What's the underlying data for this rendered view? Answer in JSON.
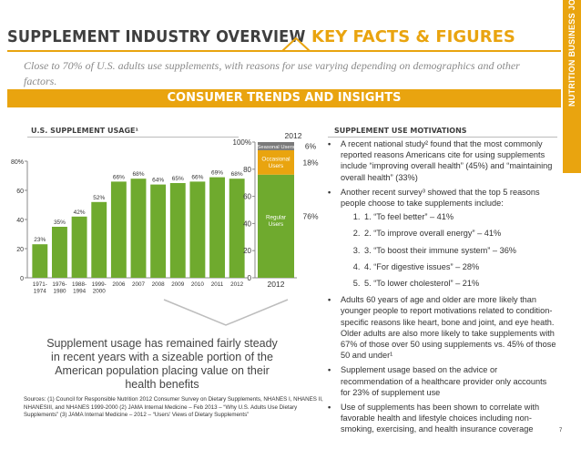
{
  "header": {
    "title": "SUPPLEMENT INDUSTRY OVERVIEW",
    "subtitle": "KEY FACTS & FIGURES"
  },
  "side_label": "NUTRITION BUSINESS JOURNAL",
  "intro": "Close to 70% of U.S. adults use supplements, with reasons for use varying depending on demographics and other factors.",
  "banner": "CONSUMER TRENDS AND INSIGHTS",
  "usage_section": {
    "title": "U.S. SUPPLEMENT USAGE¹"
  },
  "motivations_section": {
    "title": "SUPPLEMENT USE MOTIVATIONS"
  },
  "motivations": {
    "b1": "A recent national study² found that the most commonly reported reasons Americans cite for using supplements include “improving overall health” (45%) and “maintaining overall health” (33%)",
    "b2": "Another recent survey³ showed that the top 5 reasons people choose to take supplements include:",
    "top5": [
      "1.  “To feel better” – 41%",
      "2.  “To improve overall energy” – 41%",
      "3.  “To boost their immune system” – 36%",
      "4.  “For digestive issues” – 28%",
      "5.  “To lower cholesterol” – 21%"
    ],
    "b3": "Adults 60 years of age and older are more likely than younger people to report motivations related to condition-specific reasons like heart, bone and joint, and eye heath. Older adults are also more likely to take supplements with 67% of those over 50 using supplements vs. 45% of those 50 and under¹",
    "b4": "Supplement usage based on the advice or recommendation of a healthcare provider only accounts for 23% of supplement use",
    "b5": "Use of supplements has been shown to correlate with favorable health and lifestyle choices including non-smoking, exercising, and health insurance coverage"
  },
  "summary": "Supplement usage has remained fairly steady in recent years with a sizeable portion of the American population placing value on their health benefits",
  "sources": "Sources: (1) Council for Responsible Nutrition 2012 Consumer Survey on Dietary Supplements, NHANES I, NHANES II, NHANESIII, and NHANES 1999-2000 (2) JAMA Internal Medicine – Feb 2013 – “Why U.S. Adults Use Dietary Supplements” (3) JAMA Internal Medicine – 2012 – “Users' Views of Dietary Supplements”",
  "page_number": "7",
  "colors": {
    "accent": "#e9a40f",
    "bar": "#6faa2e",
    "seasonal": "#7a7a7a",
    "occasional": "#e9a40f",
    "regular": "#6faa2e"
  },
  "chart_data": [
    {
      "type": "bar",
      "categories": [
        "1971-1974",
        "1976-1980",
        "1988-1994",
        "1999-2000",
        "2006",
        "2007",
        "2008",
        "2009",
        "2010",
        "2011",
        "2012"
      ],
      "category_lines": [
        [
          "1971-",
          "1974"
        ],
        [
          "1976-",
          "1980"
        ],
        [
          "1988-",
          "1994"
        ],
        [
          "1999-",
          "2000"
        ],
        [
          "2006"
        ],
        [
          "2007"
        ],
        [
          "2008"
        ],
        [
          "2009"
        ],
        [
          "2010"
        ],
        [
          "2011"
        ],
        [
          "2012"
        ]
      ],
      "values": [
        23,
        35,
        42,
        52,
        66,
        68,
        64,
        65,
        66,
        69,
        68
      ],
      "data_labels": [
        "23%",
        "35%",
        "42%",
        "52%",
        "66%",
        "68%",
        "64%",
        "65%",
        "66%",
        "69%",
        "68%"
      ],
      "ylim": [
        0,
        80
      ],
      "yticks": [
        0,
        20,
        40,
        60,
        80
      ],
      "ytick_labels": [
        "0",
        "20",
        "40",
        "60",
        "80%"
      ],
      "grid": false,
      "legend": false
    },
    {
      "type": "bar",
      "stacked": true,
      "categories": [
        "2012"
      ],
      "column_title": "2012",
      "series": [
        {
          "name": "Regular Users",
          "values": [
            76
          ],
          "label": "76%"
        },
        {
          "name": "Occasional Users",
          "values": [
            18
          ],
          "label": "18%"
        },
        {
          "name": "Seasonal Users",
          "values": [
            6
          ],
          "label": "6%"
        }
      ],
      "ylim": [
        0,
        100
      ],
      "yticks": [
        0,
        20,
        40,
        60,
        80,
        100
      ],
      "ytick_labels": [
        "0",
        "20",
        "40",
        "60",
        "80",
        "100%"
      ],
      "grid": false,
      "legend": false
    }
  ]
}
